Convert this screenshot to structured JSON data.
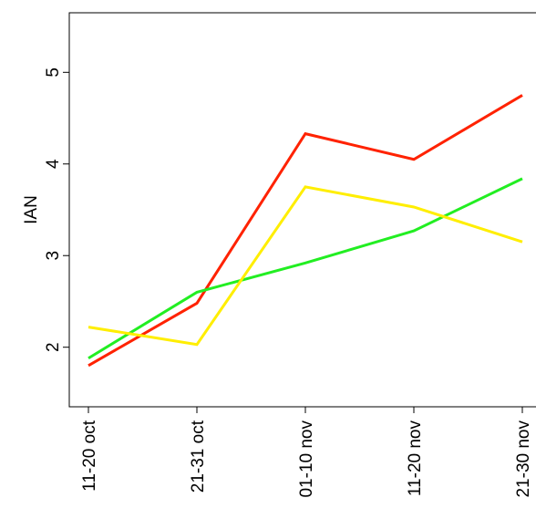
{
  "chart_data": {
    "type": "line",
    "title": "",
    "xlabel": "",
    "ylabel": "IAN",
    "categories": [
      "11-20 oct",
      "21-31 oct",
      "01-10 nov",
      "11-20 nov",
      "21-30 nov"
    ],
    "yticks": [
      "2",
      "3",
      "4",
      "5"
    ],
    "ylim": [
      1.35,
      5.65
    ],
    "grid": false,
    "series": [
      {
        "color": "#ff2200",
        "values": [
          1.8,
          2.48,
          4.33,
          4.05,
          4.75
        ]
      },
      {
        "color": "#22ee22",
        "values": [
          1.88,
          2.6,
          2.92,
          3.27,
          3.84
        ]
      },
      {
        "color": "#ffee00",
        "values": [
          2.22,
          2.03,
          3.75,
          3.53,
          3.15
        ]
      }
    ]
  }
}
